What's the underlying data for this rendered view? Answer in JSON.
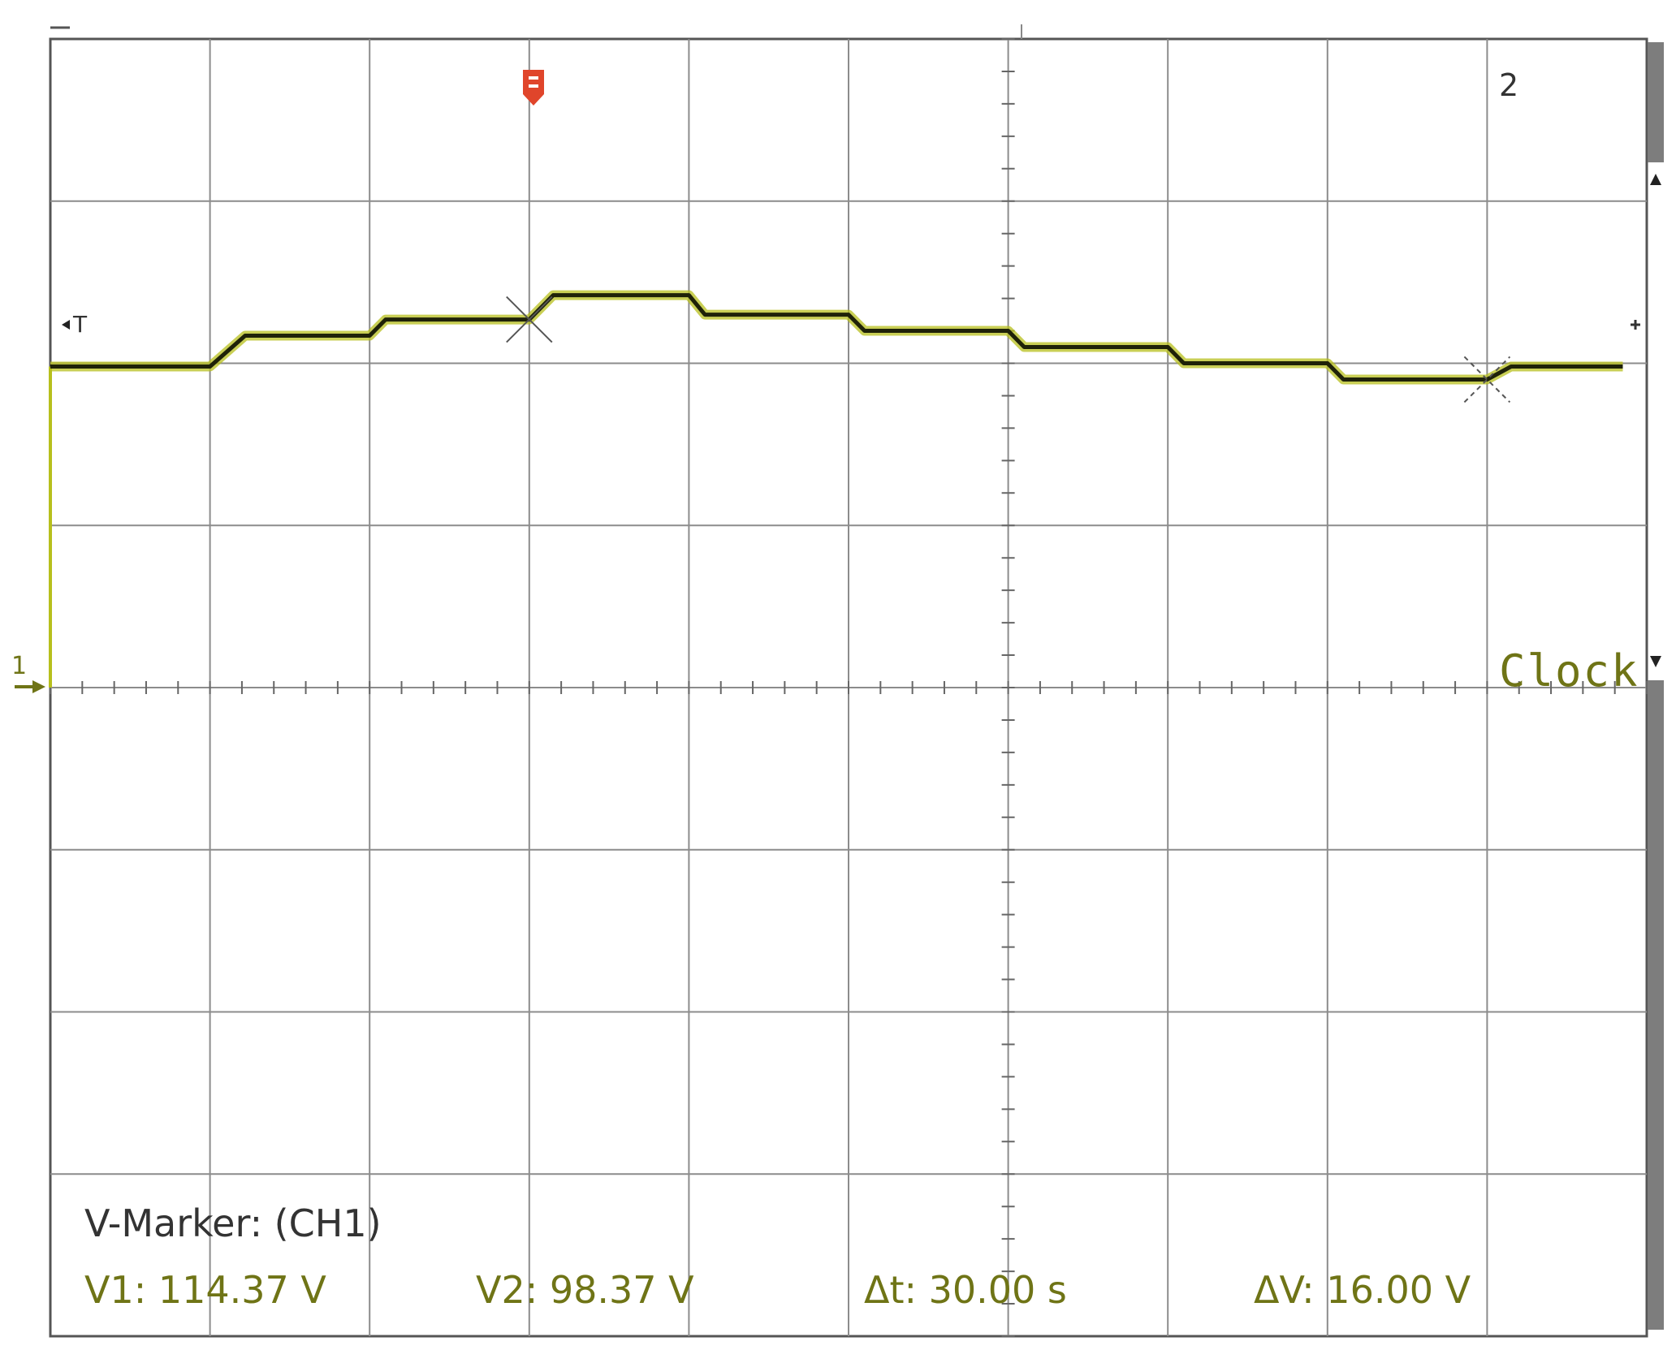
{
  "screen": {
    "grid": {
      "divisions_x": 10,
      "divisions_y": 8
    },
    "colors": {
      "background": "#ffffff",
      "grid": "#8c8c8c",
      "trace": "#1f2208",
      "trace_noise": "#b7bf1c",
      "label": "#6f7416",
      "trigger_marker": "#e0452b",
      "side_bar": "#7d7d7d"
    },
    "icons": {
      "trigger_marker": "trigger-position-marker-icon",
      "cursor1": "cursor-cross-icon",
      "cursor2": "cursor-cross-icon",
      "level_arrow": "triangle-arrow-icon"
    }
  },
  "labels": {
    "cursor2_number": "2",
    "trigger_level": "T",
    "channel_ground": "1",
    "channel_name": "Clock"
  },
  "readout": {
    "title": "V-Marker: (CH1)",
    "v1": "V1: 114.37 V",
    "v2": "V2: 98.37 V",
    "dt": "Δt: 30.00 s",
    "dv": "ΔV: 16.00 V"
  },
  "chart_data": {
    "type": "line",
    "title": "",
    "xlabel": "",
    "ylabel": "",
    "x_unit": "div",
    "y_unit": "div",
    "xlim": [
      0,
      10
    ],
    "ylim": [
      -4,
      4
    ],
    "cursors": {
      "cursor1_x_div": 3.0,
      "cursor2_x_div": 9.0
    },
    "series": [
      {
        "x": [
          0,
          1.0,
          1.22,
          2.0,
          2.1,
          3.0,
          3.15,
          4.0,
          4.1,
          5.0,
          5.1,
          6.0,
          6.1,
          7.0,
          7.1,
          8.0,
          8.1,
          9.0,
          9.15,
          9.85
        ],
        "y": [
          1.98,
          1.98,
          2.17,
          2.17,
          2.27,
          2.27,
          2.42,
          2.42,
          2.3,
          2.3,
          2.2,
          2.2,
          2.1,
          2.1,
          2.0,
          2.0,
          1.9,
          1.9,
          1.98,
          1.98
        ]
      }
    ]
  }
}
